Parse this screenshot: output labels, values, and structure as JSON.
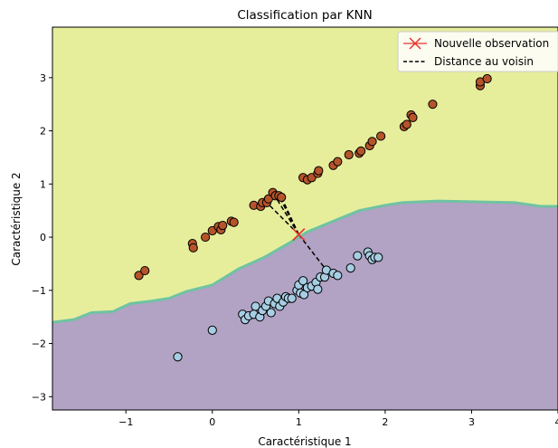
{
  "chart_data": {
    "type": "scatter",
    "title": "Classification par KNN",
    "xlabel": "Caractéristique 1",
    "ylabel": "Caractéristique 2",
    "xlim": [
      -1.85,
      4.0
    ],
    "ylim": [
      -3.25,
      3.95
    ],
    "xticks": [
      -1,
      0,
      1,
      2,
      3,
      4
    ],
    "yticks": [
      -3,
      -2,
      -1,
      0,
      1,
      2,
      3
    ],
    "grid": false,
    "legend_position": "top-right",
    "decision_boundary": {
      "upper_region_color": "#e6ee9c",
      "lower_region_color": "#b2a2c4",
      "edge_color": "#6fc3a2",
      "boundary": [
        [
          -1.85,
          -1.6
        ],
        [
          -1.6,
          -1.55
        ],
        [
          -1.4,
          -1.42
        ],
        [
          -1.15,
          -1.4
        ],
        [
          -0.95,
          -1.25
        ],
        [
          -0.7,
          -1.2
        ],
        [
          -0.5,
          -1.15
        ],
        [
          -0.3,
          -1.02
        ],
        [
          0.0,
          -0.9
        ],
        [
          0.3,
          -0.6
        ],
        [
          0.6,
          -0.38
        ],
        [
          0.9,
          -0.1
        ],
        [
          1.1,
          0.1
        ],
        [
          1.4,
          0.3
        ],
        [
          1.7,
          0.5
        ],
        [
          2.0,
          0.6
        ],
        [
          2.2,
          0.65
        ],
        [
          2.6,
          0.68
        ],
        [
          3.5,
          0.65
        ],
        [
          3.8,
          0.58
        ],
        [
          4.0,
          0.58
        ]
      ]
    },
    "series": [
      {
        "class": "upper",
        "color": "#b5542a",
        "points": [
          [
            -0.85,
            -0.72
          ],
          [
            -0.78,
            -0.63
          ],
          [
            -0.23,
            -0.12
          ],
          [
            -0.22,
            -0.2
          ],
          [
            -0.08,
            0.0
          ],
          [
            0.0,
            0.12
          ],
          [
            0.07,
            0.2
          ],
          [
            0.1,
            0.14
          ],
          [
            0.12,
            0.22
          ],
          [
            0.22,
            0.3
          ],
          [
            0.25,
            0.28
          ],
          [
            0.48,
            0.6
          ],
          [
            0.56,
            0.58
          ],
          [
            0.58,
            0.65
          ],
          [
            0.63,
            0.65
          ],
          [
            0.65,
            0.72
          ],
          [
            0.7,
            0.84
          ],
          [
            0.73,
            0.78
          ],
          [
            0.77,
            0.78
          ],
          [
            0.8,
            0.75
          ],
          [
            1.05,
            1.12
          ],
          [
            1.1,
            1.08
          ],
          [
            1.15,
            1.12
          ],
          [
            1.22,
            1.2
          ],
          [
            1.23,
            1.25
          ],
          [
            1.4,
            1.35
          ],
          [
            1.45,
            1.42
          ],
          [
            1.58,
            1.55
          ],
          [
            1.7,
            1.58
          ],
          [
            1.72,
            1.62
          ],
          [
            1.82,
            1.72
          ],
          [
            1.85,
            1.8
          ],
          [
            1.95,
            1.9
          ],
          [
            2.22,
            2.08
          ],
          [
            2.25,
            2.12
          ],
          [
            2.3,
            2.3
          ],
          [
            2.32,
            2.25
          ],
          [
            2.55,
            2.5
          ],
          [
            3.1,
            2.85
          ],
          [
            3.1,
            2.92
          ],
          [
            3.18,
            2.98
          ]
        ]
      },
      {
        "class": "lower",
        "color": "#a6cee3",
        "points": [
          [
            -0.4,
            -2.25
          ],
          [
            0.0,
            -1.75
          ],
          [
            0.35,
            -1.45
          ],
          [
            0.38,
            -1.55
          ],
          [
            0.42,
            -1.48
          ],
          [
            0.48,
            -1.45
          ],
          [
            0.5,
            -1.3
          ],
          [
            0.55,
            -1.5
          ],
          [
            0.58,
            -1.38
          ],
          [
            0.62,
            -1.3
          ],
          [
            0.65,
            -1.2
          ],
          [
            0.68,
            -1.42
          ],
          [
            0.72,
            -1.25
          ],
          [
            0.75,
            -1.15
          ],
          [
            0.78,
            -1.3
          ],
          [
            0.82,
            -1.22
          ],
          [
            0.85,
            -1.12
          ],
          [
            0.88,
            -1.15
          ],
          [
            0.92,
            -1.15
          ],
          [
            0.98,
            -1.0
          ],
          [
            1.0,
            -0.9
          ],
          [
            1.02,
            -1.05
          ],
          [
            1.05,
            -0.82
          ],
          [
            1.06,
            -1.08
          ],
          [
            1.1,
            -0.95
          ],
          [
            1.15,
            -0.92
          ],
          [
            1.2,
            -0.85
          ],
          [
            1.22,
            -0.98
          ],
          [
            1.25,
            -0.75
          ],
          [
            1.3,
            -0.75
          ],
          [
            1.32,
            -0.62
          ],
          [
            1.4,
            -0.68
          ],
          [
            1.45,
            -0.72
          ],
          [
            1.6,
            -0.58
          ],
          [
            1.68,
            -0.35
          ],
          [
            1.8,
            -0.28
          ],
          [
            1.82,
            -0.35
          ],
          [
            1.85,
            -0.42
          ],
          [
            1.88,
            -0.38
          ],
          [
            1.92,
            -0.38
          ]
        ]
      }
    ],
    "new_observation": {
      "label": "Nouvelle observation",
      "x": 1.0,
      "y": 0.05,
      "color": "#e8332a"
    },
    "neighbor_lines": {
      "label": "Distance au voisin",
      "color": "#000000",
      "targets": [
        [
          0.7,
          0.84
        ],
        [
          0.77,
          0.78
        ],
        [
          0.63,
          0.65
        ],
        [
          1.32,
          -0.62
        ],
        [
          0.8,
          0.75
        ]
      ]
    }
  }
}
